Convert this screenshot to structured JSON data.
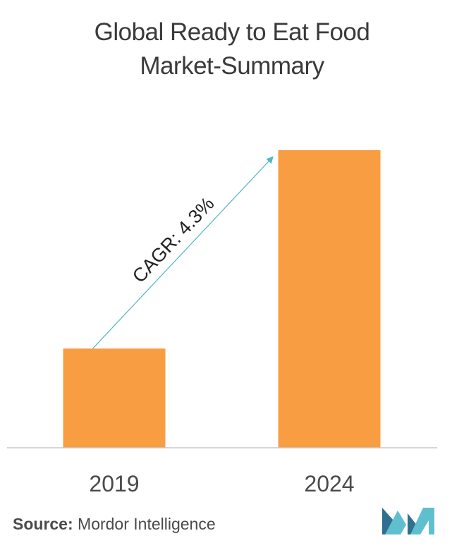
{
  "title": {
    "line1": "Global Ready to Eat Food",
    "line2": "Market-Summary"
  },
  "chart_data": {
    "type": "bar",
    "categories": [
      "2019",
      "2024"
    ],
    "values": [
      1,
      3
    ],
    "annotation": "CAGR: 4.3%",
    "bar_color": "#f99d43",
    "arrow_color": "#4fb8c3",
    "axis_color": "#c8c8c8",
    "grid": false,
    "legend": "none"
  },
  "source": {
    "label": "Source:",
    "text": "Mordor Intelligence"
  },
  "logo": {
    "icon": "mordor-intelligence-logo",
    "color_dark": "#2f6f8f",
    "color_light": "#5fbfcf"
  }
}
